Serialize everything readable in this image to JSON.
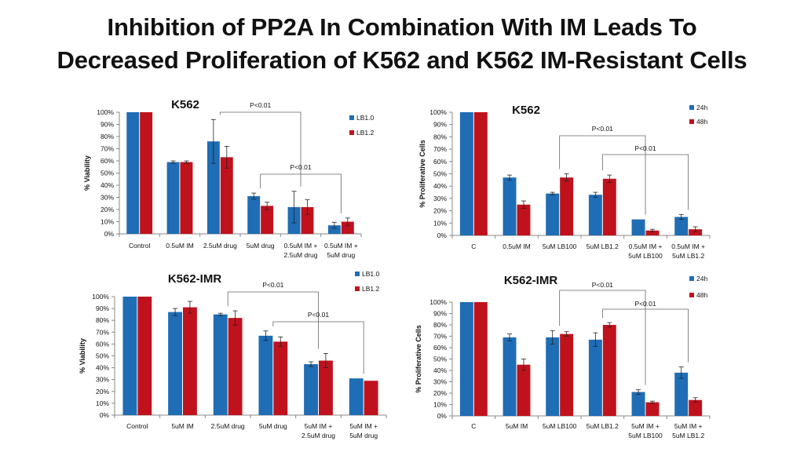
{
  "slide": {
    "title_line1": "Inhibition of PP2A In Combination With IM Leads To",
    "title_line2": "Decreased Proliferation of K562 and K562 IM-Resistant Cells"
  },
  "colors": {
    "series1": "#1f6db5",
    "series2": "#c0121d",
    "axis": "#888888",
    "text": "#111111"
  },
  "chart_data": [
    {
      "type": "bar",
      "title": "K562",
      "ylabel": "% Viability",
      "ylim": [
        0,
        100
      ],
      "yticks": [
        "0%",
        "10%",
        "20%",
        "30%",
        "40%",
        "50%",
        "60%",
        "70%",
        "80%",
        "90%",
        "100%"
      ],
      "categories": [
        "Control",
        "0.5uM IM",
        "2.5uM drug",
        "5uM drug",
        "0.5uM IM +\n2.5uM drug",
        "0.5uM IM +\n5uM drug"
      ],
      "series": [
        {
          "name": "LB1.0",
          "values": [
            100,
            59,
            76,
            31,
            22,
            7
          ],
          "errors": [
            0,
            1,
            18,
            2.5,
            13,
            2.5
          ]
        },
        {
          "name": "LB1.2",
          "values": [
            100,
            59,
            63,
            23,
            22,
            10
          ],
          "errors": [
            0,
            1,
            9,
            3,
            6,
            3
          ]
        }
      ],
      "annotations": [
        {
          "text": "P<0.01",
          "from": 2,
          "to": 4
        },
        {
          "text": "P<0.01",
          "from": 3,
          "to": 5
        }
      ],
      "legend": "right"
    },
    {
      "type": "bar",
      "title": "K562",
      "ylabel": "% Proliferative Cells",
      "ylim": [
        0,
        100
      ],
      "yticks": [
        "0%",
        "10%",
        "20%",
        "30%",
        "40%",
        "50%",
        "60%",
        "70%",
        "80%",
        "90%",
        "100%"
      ],
      "categories": [
        "C",
        "0.5uM IM",
        "5uM LB100",
        "5uM LB1.2",
        "0.5uM IM +\n5uM LB100",
        "0.5uM IM +\n5uM LB1.2"
      ],
      "series": [
        {
          "name": "24h",
          "values": [
            100,
            47,
            34,
            33,
            13,
            15
          ],
          "errors": [
            0,
            2,
            1,
            2,
            0,
            2
          ]
        },
        {
          "name": "48h",
          "values": [
            100,
            25,
            47,
            46,
            4,
            5
          ],
          "errors": [
            0,
            3,
            3,
            3,
            1,
            2
          ]
        }
      ],
      "annotations": [
        {
          "text": "P<0.01",
          "from": 2,
          "to": 4
        },
        {
          "text": "P<0.01",
          "from": 3,
          "to": 5
        }
      ],
      "legend": "top-right"
    },
    {
      "type": "bar",
      "title": "K562-IMR",
      "ylabel": "% Viability",
      "ylim": [
        0,
        100
      ],
      "yticks": [
        "0%",
        "10%",
        "20%",
        "30%",
        "40%",
        "50%",
        "60%",
        "70%",
        "80%",
        "90%",
        "100%"
      ],
      "categories": [
        "Control",
        "5uM IM",
        "2.5uM drug",
        "5uM drug",
        "5uM IM +\n2.5uM drug",
        "5uM IM +\n5uM drug"
      ],
      "series": [
        {
          "name": "LB1.0",
          "values": [
            100,
            87,
            85,
            67,
            43,
            31
          ],
          "errors": [
            0,
            3,
            1,
            4,
            2,
            0
          ]
        },
        {
          "name": "LB1.2",
          "values": [
            100,
            91,
            82,
            62,
            46,
            29
          ],
          "errors": [
            0,
            5,
            6,
            4,
            6,
            0
          ]
        }
      ],
      "annotations": [
        {
          "text": "P<0.01",
          "from": 2,
          "to": 4
        },
        {
          "text": "P<0.01",
          "from": 3,
          "to": 5
        }
      ],
      "legend": "top-right"
    },
    {
      "type": "bar",
      "title": "K562-IMR",
      "ylabel": "% Proliferative Cells",
      "ylim": [
        0,
        100
      ],
      "yticks": [
        "0%",
        "10%",
        "20%",
        "30%",
        "40%",
        "50%",
        "60%",
        "70%",
        "80%",
        "90%",
        "100%"
      ],
      "categories": [
        "C",
        "5uM IM",
        "5uM LB100",
        "5uM LB1.2",
        "5uM IM +\n5uM LB100",
        "5uM IM +\n5uM LB1.2"
      ],
      "series": [
        {
          "name": "24h",
          "values": [
            100,
            69,
            69,
            67,
            21,
            38
          ],
          "errors": [
            0,
            3,
            6,
            6,
            2,
            5
          ]
        },
        {
          "name": "48h",
          "values": [
            100,
            45,
            72,
            80,
            12,
            14
          ],
          "errors": [
            0,
            5,
            2,
            2,
            1,
            2
          ]
        }
      ],
      "annotations": [
        {
          "text": "P<0.01",
          "from": 2,
          "to": 4
        },
        {
          "text": "P<0.01",
          "from": 3,
          "to": 5
        }
      ],
      "legend": "top-right"
    }
  ]
}
